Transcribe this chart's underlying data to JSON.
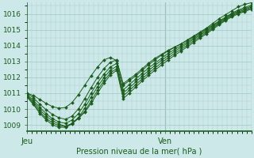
{
  "bg_color": "#cce8e8",
  "grid_color": "#aacccc",
  "line_color": "#1a5c1a",
  "marker_color": "#1a5c1a",
  "ylabel_ticks": [
    1009,
    1010,
    1011,
    1012,
    1013,
    1014,
    1015,
    1016
  ],
  "ylim": [
    1008.6,
    1016.7
  ],
  "xlim": [
    0,
    47
  ],
  "xlabel": "Pression niveau de la mer( hPa )",
  "xtick_labels": [
    "Jeu",
    "Ven"
  ],
  "xtick_pos": [
    0,
    29
  ],
  "vline_x": 29,
  "series": [
    [
      1011.0,
      1010.85,
      1010.6,
      1010.35,
      1010.15,
      1010.05,
      1010.1,
      1010.4,
      1010.9,
      1011.5,
      1012.1,
      1012.65,
      1013.1,
      1013.25,
      1013.05,
      1011.6,
      1011.9,
      1012.2,
      1012.55,
      1012.9,
      1013.2,
      1013.45,
      1013.7,
      1013.9,
      1014.1,
      1014.35,
      1014.6,
      1014.85,
      1015.1,
      1015.4,
      1015.7,
      1015.95,
      1016.2,
      1016.45,
      1016.6,
      1016.7
    ],
    [
      1011.0,
      1010.7,
      1010.3,
      1009.95,
      1009.65,
      1009.45,
      1009.35,
      1009.55,
      1010.0,
      1010.65,
      1011.35,
      1012.0,
      1012.55,
      1012.95,
      1013.1,
      1011.5,
      1011.8,
      1012.1,
      1012.45,
      1012.8,
      1013.1,
      1013.4,
      1013.65,
      1013.88,
      1014.1,
      1014.32,
      1014.56,
      1014.8,
      1015.05,
      1015.3,
      1015.55,
      1015.8,
      1016.05,
      1016.25,
      1016.4,
      1016.55
    ],
    [
      1010.9,
      1010.55,
      1010.1,
      1009.7,
      1009.38,
      1009.18,
      1009.1,
      1009.3,
      1009.7,
      1010.3,
      1011.0,
      1011.65,
      1012.2,
      1012.65,
      1012.88,
      1011.2,
      1011.55,
      1011.9,
      1012.25,
      1012.6,
      1012.9,
      1013.2,
      1013.5,
      1013.75,
      1013.98,
      1014.22,
      1014.48,
      1014.72,
      1014.98,
      1015.24,
      1015.5,
      1015.75,
      1016.0,
      1016.18,
      1016.32,
      1016.48
    ],
    [
      1010.85,
      1010.45,
      1009.95,
      1009.55,
      1009.25,
      1009.05,
      1008.92,
      1009.08,
      1009.45,
      1010.05,
      1010.75,
      1011.4,
      1011.98,
      1012.45,
      1012.7,
      1011.0,
      1011.35,
      1011.72,
      1012.08,
      1012.43,
      1012.76,
      1013.07,
      1013.36,
      1013.63,
      1013.88,
      1014.13,
      1014.4,
      1014.65,
      1014.9,
      1015.17,
      1015.44,
      1015.7,
      1015.94,
      1016.12,
      1016.26,
      1016.42
    ],
    [
      1010.8,
      1010.35,
      1009.82,
      1009.4,
      1009.12,
      1008.95,
      1008.9,
      1009.08,
      1009.45,
      1009.85,
      1010.5,
      1011.18,
      1011.78,
      1012.28,
      1012.55,
      1010.82,
      1011.18,
      1011.55,
      1011.92,
      1012.27,
      1012.6,
      1012.92,
      1013.22,
      1013.5,
      1013.76,
      1014.02,
      1014.3,
      1014.56,
      1014.82,
      1015.1,
      1015.38,
      1015.64,
      1015.88,
      1016.06,
      1016.2,
      1016.36
    ],
    [
      1010.75,
      1010.28,
      1009.72,
      1009.3,
      1009.0,
      1008.85,
      1008.85,
      1009.05,
      1009.4,
      1009.8,
      1010.35,
      1011.0,
      1011.62,
      1012.15,
      1012.44,
      1010.65,
      1011.02,
      1011.4,
      1011.78,
      1012.13,
      1012.46,
      1012.78,
      1013.08,
      1013.38,
      1013.65,
      1013.92,
      1014.2,
      1014.47,
      1014.74,
      1015.02,
      1015.32,
      1015.58,
      1015.82,
      1016.0,
      1016.15,
      1016.3
    ]
  ]
}
